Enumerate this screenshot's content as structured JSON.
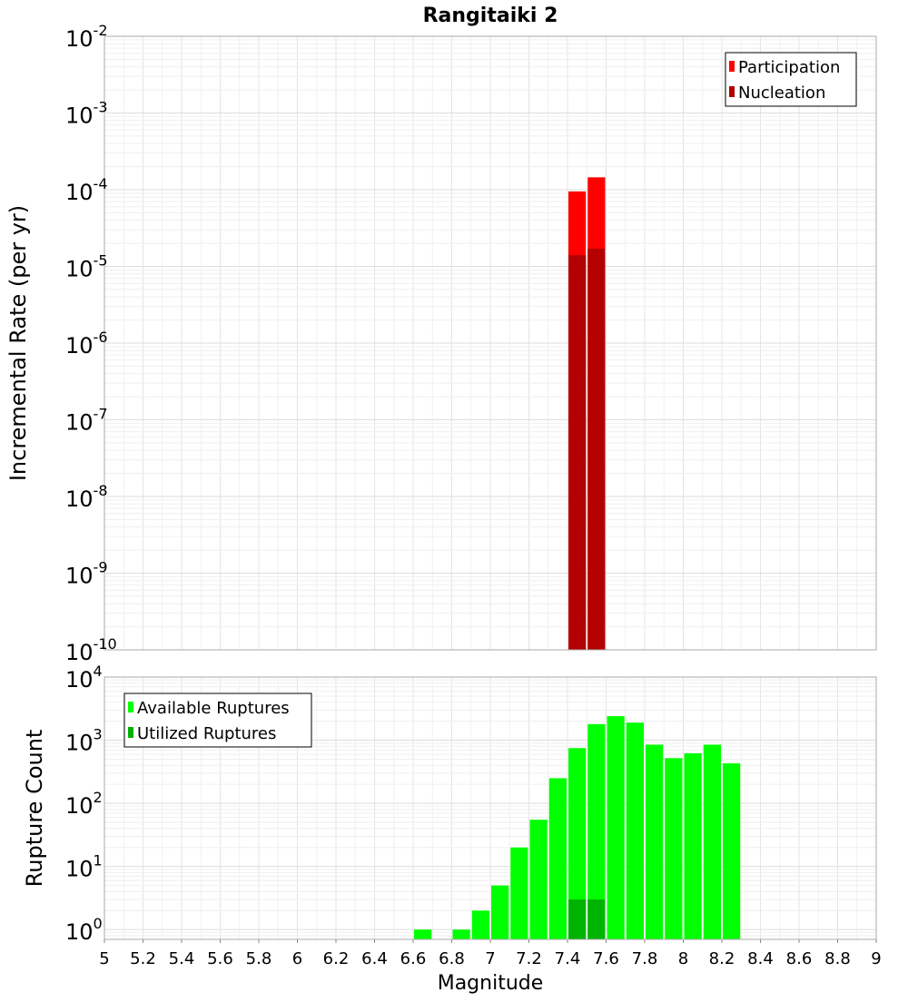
{
  "chart_data": [
    {
      "type": "bar",
      "title": "Rangitaiki 2",
      "ylabel": "Incremental Rate (per yr)",
      "xlabel": "",
      "y_scale": "log",
      "xlim": [
        5,
        9
      ],
      "ylim": [
        1e-10,
        0.01
      ],
      "y_ticks": [
        {
          "base": "10",
          "exp": "-2"
        },
        {
          "base": "10",
          "exp": "-3"
        },
        {
          "base": "10",
          "exp": "-4"
        },
        {
          "base": "10",
          "exp": "-5"
        },
        {
          "base": "10",
          "exp": "-6"
        },
        {
          "base": "10",
          "exp": "-7"
        },
        {
          "base": "10",
          "exp": "-8"
        },
        {
          "base": "10",
          "exp": "-9"
        },
        {
          "base": "10",
          "exp": "-10"
        }
      ],
      "bin_width": 0.1,
      "grid": true,
      "legend_position": "top-right",
      "series": [
        {
          "name": "Participation",
          "color": "#ff0000",
          "x": [
            7.45,
            7.55
          ],
          "values": [
            9.5e-05,
            0.000145
          ]
        },
        {
          "name": "Nucleation",
          "color": "#b30000",
          "x": [
            7.45,
            7.55
          ],
          "values": [
            1.4e-05,
            1.7e-05
          ]
        }
      ]
    },
    {
      "type": "bar",
      "ylabel": "Rupture Count",
      "xlabel": "Magnitude",
      "y_scale": "log",
      "xlim": [
        5,
        9
      ],
      "ylim": [
        0.7,
        10000
      ],
      "x_ticks": [
        "5",
        "5.2",
        "5.4",
        "5.6",
        "5.8",
        "6",
        "6.2",
        "6.4",
        "6.6",
        "6.8",
        "7",
        "7.2",
        "7.4",
        "7.6",
        "7.8",
        "8",
        "8.2",
        "8.4",
        "8.6",
        "8.8",
        "9"
      ],
      "y_ticks": [
        {
          "base": "10",
          "exp": "4"
        },
        {
          "base": "10",
          "exp": "3"
        },
        {
          "base": "10",
          "exp": "2"
        },
        {
          "base": "10",
          "exp": "1"
        },
        {
          "base": "10",
          "exp": "0"
        }
      ],
      "bin_width": 0.1,
      "grid": true,
      "legend_position": "top-left",
      "series": [
        {
          "name": "Available Ruptures",
          "color": "#00ff00",
          "x": [
            6.65,
            6.85,
            6.95,
            7.05,
            7.15,
            7.25,
            7.35,
            7.45,
            7.55,
            7.65,
            7.75,
            7.85,
            7.95,
            8.05,
            8.15,
            8.25
          ],
          "values": [
            1,
            1,
            2,
            5,
            20,
            55,
            250,
            750,
            1800,
            2400,
            1900,
            850,
            520,
            620,
            850,
            430
          ]
        },
        {
          "name": "Utilized Ruptures",
          "color": "#00b300",
          "x": [
            7.45,
            7.55
          ],
          "values": [
            3,
            3
          ]
        }
      ]
    }
  ]
}
